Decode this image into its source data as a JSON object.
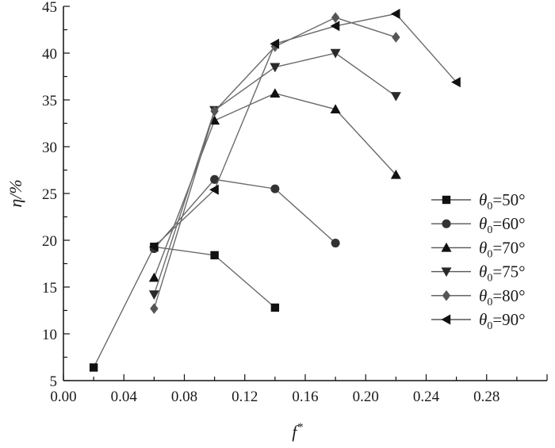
{
  "chart_data": {
    "type": "line",
    "xlabel": "f",
    "xlabel_sup": "*",
    "ylabel": "η/%",
    "xlim": [
      0.0,
      0.32
    ],
    "ylim": [
      5,
      45
    ],
    "xticks": [
      "0.00",
      "0.04",
      "0.08",
      "0.12",
      "0.16",
      "0.20",
      "0.24",
      "0.28"
    ],
    "yticks": [
      "5",
      "10",
      "15",
      "20",
      "25",
      "30",
      "35",
      "40",
      "45"
    ],
    "grid": false,
    "legend_position": "right",
    "series": [
      {
        "name": "θ0=50°",
        "marker": "square",
        "color": "#111111",
        "x": [
          0.02,
          0.06,
          0.1,
          0.14
        ],
        "y": [
          6.4,
          19.3,
          18.4,
          12.8
        ]
      },
      {
        "name": "θ0=60°",
        "marker": "circle",
        "color": "#333333",
        "x": [
          0.06,
          0.1,
          0.14,
          0.18
        ],
        "y": [
          19.1,
          26.5,
          25.5,
          19.7
        ]
      },
      {
        "name": "θ0=70°",
        "marker": "triangle-up",
        "color": "#111111",
        "x": [
          0.06,
          0.1,
          0.14,
          0.18,
          0.22
        ],
        "y": [
          16.0,
          32.8,
          35.7,
          34.0,
          27.0
        ]
      },
      {
        "name": "θ0=75°",
        "marker": "triangle-down",
        "color": "#2a2a2a",
        "x": [
          0.06,
          0.1,
          0.14,
          0.18,
          0.22
        ],
        "y": [
          14.2,
          33.9,
          38.5,
          40.0,
          35.4
        ]
      },
      {
        "name": "θ0=80°",
        "marker": "diamond",
        "color": "#555555",
        "x": [
          0.06,
          0.1,
          0.14,
          0.18,
          0.22
        ],
        "y": [
          12.7,
          33.8,
          40.7,
          43.8,
          41.7
        ]
      },
      {
        "name": "θ0=90°",
        "marker": "triangle-left",
        "color": "#111111",
        "x": [
          0.06,
          0.1,
          0.14,
          0.18,
          0.22,
          0.26
        ],
        "y": [
          19.3,
          25.4,
          41.0,
          42.9,
          44.2,
          36.9
        ]
      }
    ]
  }
}
